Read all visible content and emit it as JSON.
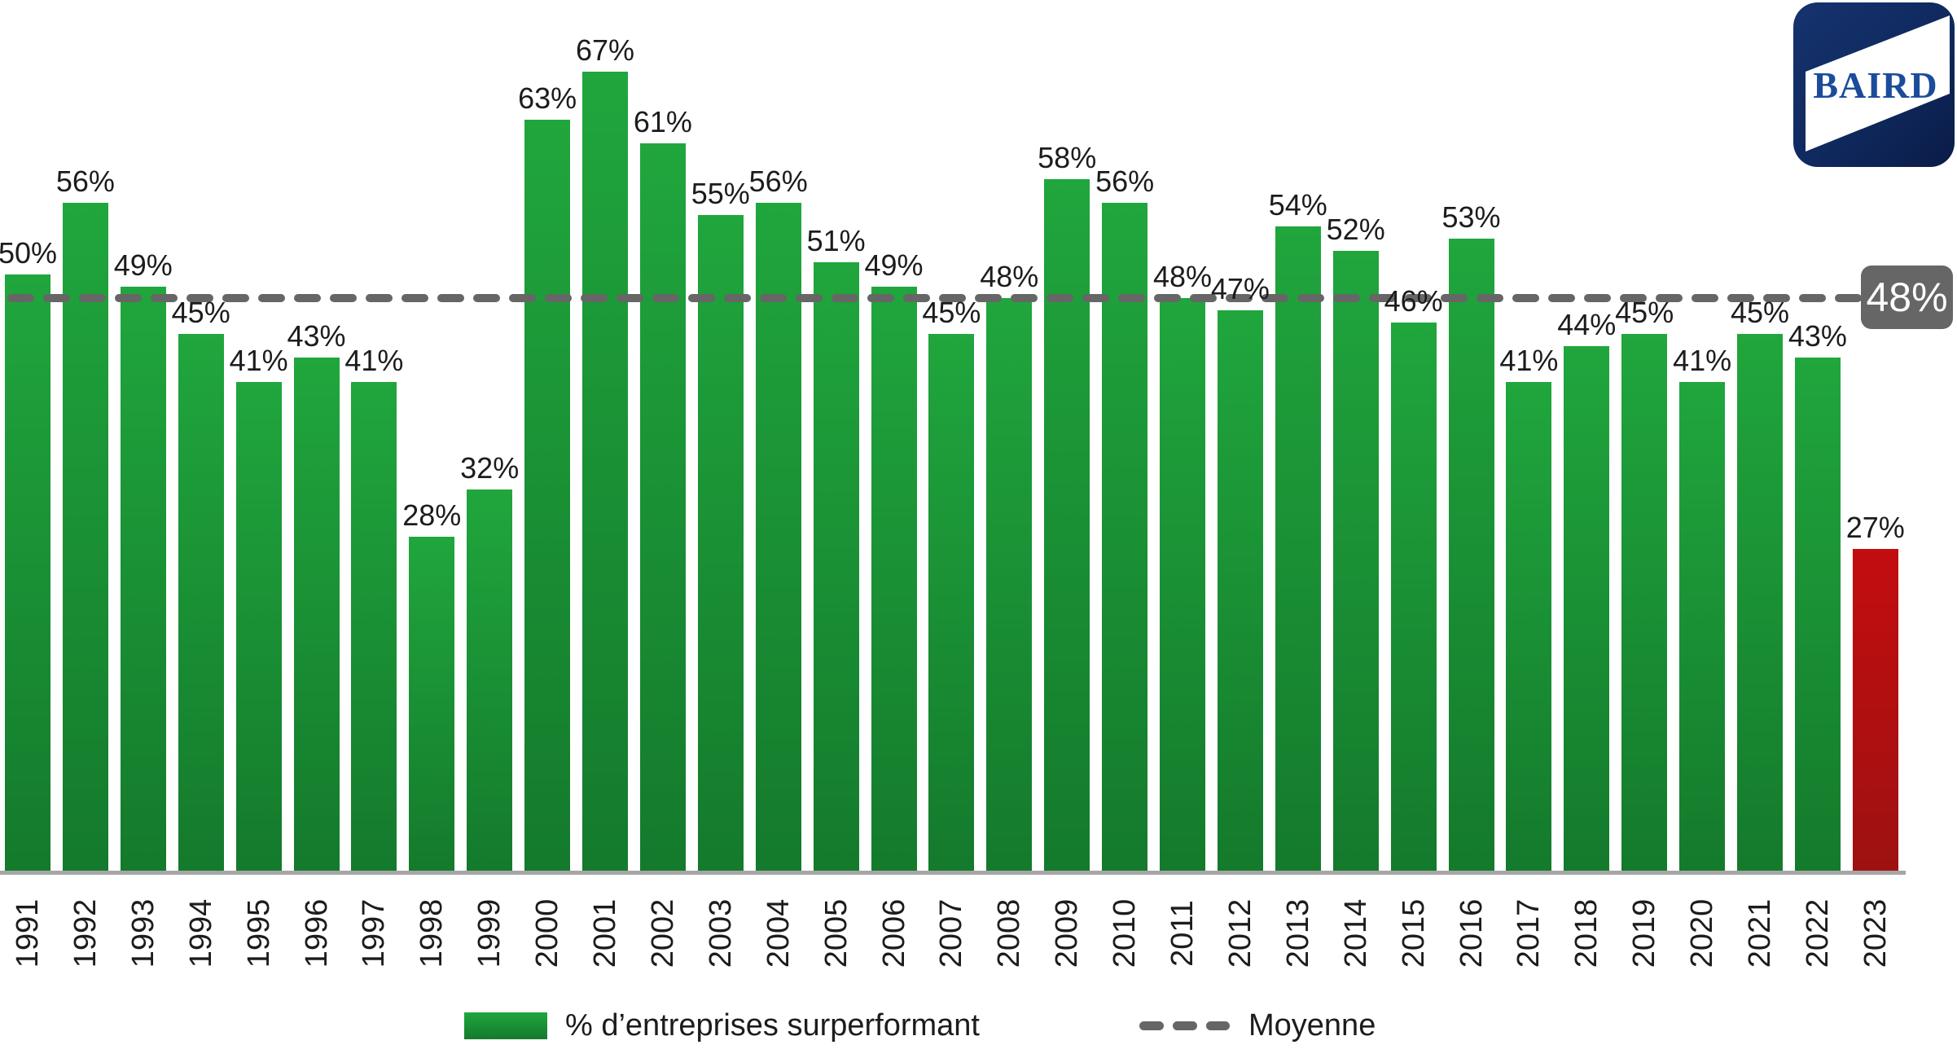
{
  "chart_data": {
    "type": "bar",
    "title": "",
    "categories": [
      "1991",
      "1992",
      "1993",
      "1994",
      "1995",
      "1996",
      "1997",
      "1998",
      "1999",
      "2000",
      "2001",
      "2002",
      "2003",
      "2004",
      "2005",
      "2006",
      "2007",
      "2008",
      "2009",
      "2010",
      "2011",
      "2012",
      "2013",
      "2014",
      "2015",
      "2016",
      "2017",
      "2018",
      "2019",
      "2020",
      "2021",
      "2022",
      "2023"
    ],
    "series": [
      {
        "name": "% d’entreprises surperformant",
        "values": [
          50,
          56,
          49,
          45,
          41,
          43,
          41,
          28,
          32,
          63,
          67,
          61,
          55,
          56,
          51,
          49,
          45,
          48,
          58,
          56,
          48,
          47,
          54,
          52,
          46,
          53,
          41,
          44,
          45,
          41,
          45,
          43,
          27
        ]
      }
    ],
    "value_suffix": "%",
    "highlight_category": "2023",
    "average_line": {
      "value": 48,
      "label": "48%",
      "name": "Moyenne"
    },
    "ylim": [
      0,
      70
    ],
    "grid": false,
    "legend_position": "bottom",
    "colors": {
      "bar": "#20A63D",
      "bar_dark": "#147A2C",
      "bar_highlight": "#C30D10",
      "bar_highlight_dark": "#9E1111",
      "average_line": "#666666",
      "axis": "#A6A6A6",
      "text": "#1C1C1C",
      "badge_text": "#FFFFFF"
    }
  },
  "legend": {
    "series_label": "% d’entreprises surperformant",
    "average_label": "Moyenne"
  },
  "average_badge": {
    "label": "48%"
  },
  "logo": {
    "text": "BAIRD",
    "bg_dark": "#0A1C47",
    "bg_light": "#16336E",
    "band_color": "#FFFFFF",
    "text_color": "#1B4C9B"
  }
}
